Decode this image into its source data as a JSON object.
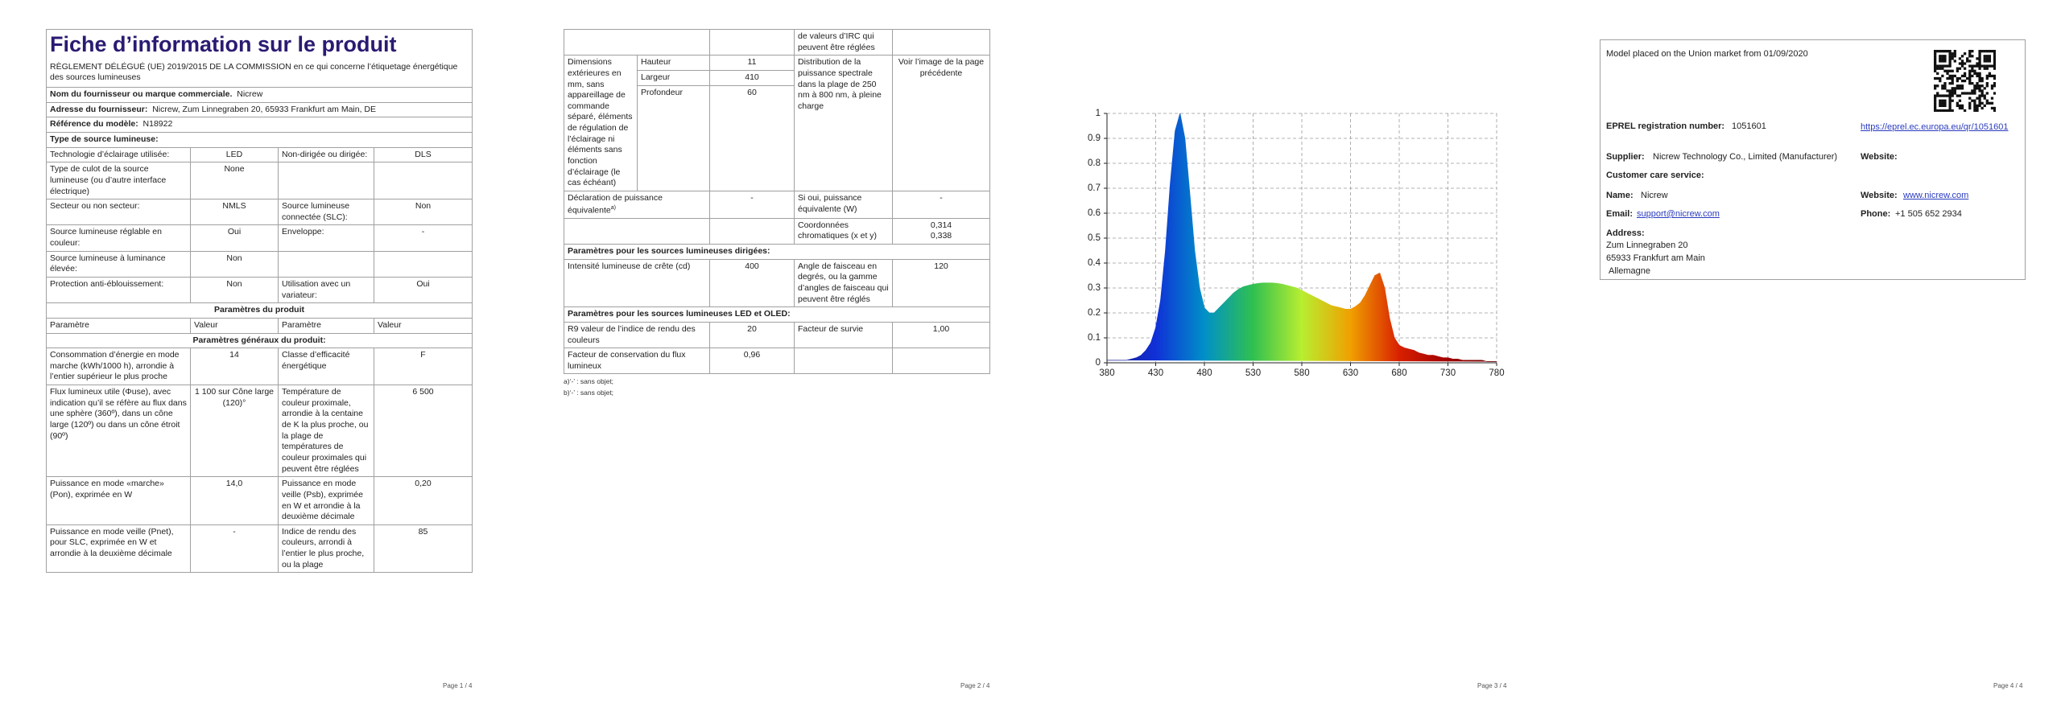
{
  "page1": {
    "title": "Fiche d’information sur le produit",
    "regulation": "RÈGLEMENT DÉLÉGUÉ (UE) 2019/2015 DE LA COMMISSION en ce qui concerne l’étiquetage énergétique des sources lumineuses",
    "supplier_name": {
      "label": "Nom du fournisseur ou marque commerciale.",
      "value": "Nicrew"
    },
    "supplier_address": {
      "label": "Adresse du fournisseur:",
      "value": "Nicrew, Zum Linnegraben 20, 65933 Frankfurt am Main, DE"
    },
    "model_reference": {
      "label": "Référence du modèle:",
      "value": "N18922"
    },
    "source_type_heading": "Type de source lumineuse:",
    "source_type_rows": [
      [
        "Technologie d’éclairage utilisée:",
        "LED",
        "Non-dirigée ou dirigée:",
        "DLS"
      ],
      [
        "Type de culot de la source lumineuse (ou d’autre interface électrique)",
        "None"
      ],
      [
        "Secteur ou non secteur:",
        "NMLS",
        "Source lumineuse connectée (SLC):",
        "Non"
      ],
      [
        "Source lumineuse réglable en couleur:",
        "Oui",
        "Enveloppe:",
        "-"
      ],
      [
        "Source lumineuse à luminance élevée:",
        "Non"
      ],
      [
        "Protection anti-éblouissement:",
        "Non",
        "Utilisation avec un variateur:",
        "Oui"
      ]
    ],
    "product_params_heading": "Paramètres du produit",
    "column_headers": [
      "Paramètre",
      "Valeur",
      "Paramètre",
      "Valeur"
    ],
    "general_params_heading": "Paramètres généraux du produit:",
    "general_params_rows": [
      [
        "Consommation d’énergie en mode marche (kWh/1000 h), arrondie à l’entier supérieur le plus proche",
        14,
        "Classe d’efficacité énergétique",
        "F"
      ],
      [
        "Flux lumineux utile (Φuse), avec indication qu’il se réfère au flux dans une sphère (360º), dans un cône large (120º) ou dans un cône étroit (90º)",
        "1 100 sur Cône large (120)°",
        "Température de couleur proximale, arrondie à la centaine de K la plus proche, ou la plage de températures de couleur proximales qui peuvent être réglées",
        "6 500"
      ],
      [
        "Puissance en mode «marche» (Pon), exprimée en W",
        "14,0",
        "Puissance en mode veille (Psb), exprimée en W et arrondie à la deuxième décimale",
        "0,20"
      ],
      [
        "Puissance en mode veille (Pnet), pour SLC, exprimée en W et arrondie à la deuxième décimale",
        "-",
        "Indice de rendu des couleurs, arrondi à l’entier le plus proche, ou la plage",
        85
      ]
    ],
    "page_number": "Page 1 / 4"
  },
  "page2": {
    "continued_label": "de valeurs d’IRC qui peuvent être réglées",
    "dimensions": {
      "label": "Dimensions extérieures en mm, sans appareillage de commande séparé, éléments de régulation de l’éclairage ni éléments sans fonction d’éclairage (le cas échéant)",
      "items": [
        {
          "name": "Hauteur",
          "value": 11
        },
        {
          "name": "Largeur",
          "value": 410
        },
        {
          "name": "Profondeur",
          "value": 60
        }
      ]
    },
    "spectral_distribution": {
      "label": "Distribution de la puissance spectrale dans la plage de 250 nm à 800 nm, à pleine charge",
      "value": "Voir l’image de la page précédente"
    },
    "equivalent_power": {
      "label": "Déclaration de puissance équivalente",
      "note": "a)",
      "value": "-",
      "label2": "Si oui, puissance équivalente (W)",
      "value2": "-"
    },
    "chromaticity": {
      "label": "Coordonnées chromatiques (x et y)",
      "x": "0,314",
      "y": "0,338"
    },
    "directional_heading": "Paramètres pour les sources lumineuses dirigées:",
    "directional_row": [
      "Intensité lumineuse de crête (cd)",
      400,
      "Angle de faisceau en degrés, ou la gamme d’angles de faisceau qui peuvent être réglés",
      120
    ],
    "led_heading": "Paramètres pour les sources lumineuses LED et OLED:",
    "led_rows": [
      [
        "R9 valeur de l’indice de rendu des couleurs",
        20,
        "Facteur de survie",
        "1,00"
      ],
      [
        "Facteur de conservation du flux lumineux",
        "0,96"
      ]
    ],
    "footnotes": [
      "a)‘-’ : sans objet;",
      "b)‘-’ : sans objet;"
    ],
    "page_number": "Page 2 / 4"
  },
  "chart_data": {
    "type": "area",
    "x": [
      380,
      385,
      390,
      395,
      400,
      405,
      410,
      415,
      420,
      425,
      430,
      435,
      440,
      445,
      450,
      455,
      460,
      465,
      470,
      475,
      480,
      485,
      490,
      495,
      500,
      505,
      510,
      515,
      520,
      525,
      530,
      535,
      540,
      545,
      550,
      555,
      560,
      565,
      570,
      575,
      580,
      585,
      590,
      595,
      600,
      605,
      610,
      615,
      620,
      625,
      630,
      635,
      640,
      645,
      650,
      655,
      660,
      665,
      670,
      675,
      680,
      685,
      690,
      695,
      700,
      705,
      710,
      715,
      720,
      725,
      730,
      735,
      740,
      745,
      750,
      755,
      760,
      765,
      770,
      775,
      780
    ],
    "values": [
      0.01,
      0.01,
      0.01,
      0.01,
      0.01,
      0.015,
      0.02,
      0.03,
      0.05,
      0.08,
      0.14,
      0.25,
      0.45,
      0.72,
      0.93,
      1.0,
      0.9,
      0.68,
      0.45,
      0.3,
      0.22,
      0.2,
      0.2,
      0.22,
      0.24,
      0.26,
      0.28,
      0.295,
      0.305,
      0.31,
      0.315,
      0.318,
      0.32,
      0.32,
      0.32,
      0.318,
      0.315,
      0.31,
      0.305,
      0.3,
      0.29,
      0.28,
      0.27,
      0.26,
      0.25,
      0.24,
      0.23,
      0.225,
      0.22,
      0.215,
      0.215,
      0.225,
      0.24,
      0.27,
      0.31,
      0.35,
      0.36,
      0.3,
      0.18,
      0.1,
      0.07,
      0.06,
      0.055,
      0.05,
      0.04,
      0.035,
      0.03,
      0.03,
      0.025,
      0.02,
      0.02,
      0.015,
      0.015,
      0.01,
      0.01,
      0.01,
      0.01,
      0.01,
      0.005,
      0.005,
      0.005
    ],
    "xlim": [
      380,
      780
    ],
    "ylim": [
      0,
      1
    ],
    "xticks": [
      380,
      430,
      480,
      530,
      580,
      630,
      680,
      730,
      780
    ],
    "yticks": [
      0,
      0.1,
      0.2,
      0.3,
      0.4,
      0.5,
      0.6,
      0.7,
      0.8,
      0.9,
      1
    ],
    "grid": true,
    "gradient": [
      "#1b1b8a",
      "#1030d8",
      "#0090c8",
      "#30c050",
      "#b8ee30",
      "#f0a000",
      "#d82000",
      "#a00000",
      "#6a0000"
    ]
  },
  "page3": {
    "page_number": "Page 3 / 4"
  },
  "page4": {
    "market_date": "Model placed on the Union market from 01/09/2020",
    "eprel": {
      "label": "EPREL registration number:",
      "value": "1051601",
      "link": "https://eprel.ec.europa.eu/qr/1051601"
    },
    "supplier": {
      "label": "Supplier:",
      "value": "Nicrew Technology Co., Limited (Manufacturer)",
      "website_label": "Website:"
    },
    "customer_care": "Customer care service:",
    "name": {
      "label": "Name:",
      "value": "Nicrew"
    },
    "website": {
      "label": "Website:",
      "value": "www.nicrew.com"
    },
    "email": {
      "label": "Email:",
      "value": "support@nicrew.com"
    },
    "phone": {
      "label": "Phone:",
      "value": "+1 505 652 2934"
    },
    "address": {
      "label": "Address:",
      "lines": [
        "Zum Linnegraben 20",
        "65933 Frankfurt am Main",
        "Allemagne"
      ]
    },
    "page_number": "Page 4 / 4"
  }
}
